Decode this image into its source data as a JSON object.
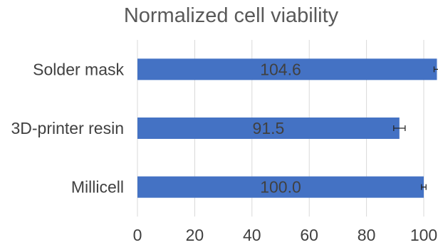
{
  "chart_data": {
    "type": "bar",
    "orientation": "horizontal",
    "title": "Normalized cell viability",
    "categories": [
      "Solder mask",
      "3D-printer resin",
      "Millicell"
    ],
    "values": [
      104.6,
      91.5,
      100.0
    ],
    "value_labels": [
      "104.6",
      "91.5",
      "100.0"
    ],
    "errors": [
      1.0,
      2.0,
      0.8
    ],
    "xlim": [
      0,
      100
    ],
    "xticks": [
      0,
      20,
      40,
      60,
      80,
      100
    ],
    "xtick_labels": [
      "0",
      "20",
      "40",
      "60",
      "80",
      "100"
    ],
    "xlabel": "",
    "ylabel": "",
    "grid": "vertical",
    "legend": "none",
    "bar_color": "#4472C4",
    "grid_color": "#D9D9D9",
    "text_color": "#404040"
  }
}
